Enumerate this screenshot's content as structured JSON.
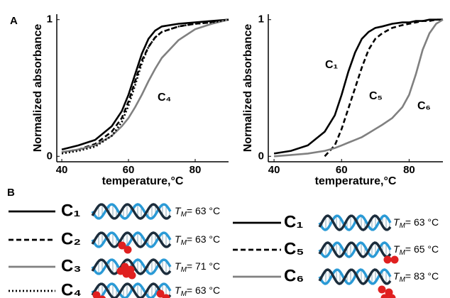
{
  "chart_data": [
    {
      "type": "line",
      "panel": "A",
      "xlabel": "temperature,°C",
      "ylabel": "Normalized absorbance",
      "x": [
        40,
        45,
        50,
        55,
        58,
        60,
        62,
        64,
        66,
        68,
        70,
        75,
        80,
        85,
        90
      ],
      "xlim": [
        38.5,
        90
      ],
      "xticks": [
        40,
        60,
        80
      ],
      "ylim": [
        -0.04,
        1.04
      ],
      "yticks": [
        0,
        1
      ],
      "series": [
        {
          "name": "C₁",
          "color": "#000000",
          "style": "solid",
          "values": [
            0.05,
            0.08,
            0.12,
            0.22,
            0.33,
            0.45,
            0.6,
            0.75,
            0.86,
            0.92,
            0.95,
            0.97,
            0.98,
            0.99,
            1.0
          ]
        },
        {
          "name": "C₂",
          "color": "#000000",
          "style": "dashed",
          "values": [
            0.03,
            0.05,
            0.09,
            0.18,
            0.28,
            0.4,
            0.55,
            0.7,
            0.8,
            0.87,
            0.91,
            0.95,
            0.97,
            0.98,
            1.0
          ]
        },
        {
          "name": "C₃",
          "color": "#808080",
          "style": "solid",
          "values": [
            0.03,
            0.05,
            0.08,
            0.15,
            0.22,
            0.28,
            0.36,
            0.45,
            0.55,
            0.64,
            0.72,
            0.85,
            0.93,
            0.97,
            1.0
          ]
        },
        {
          "name": "C₄",
          "color": "#000000",
          "style": "dotted",
          "values": [
            0.02,
            0.04,
            0.07,
            0.15,
            0.25,
            0.37,
            0.52,
            0.68,
            0.8,
            0.87,
            0.91,
            0.95,
            0.97,
            0.98,
            1.0
          ]
        }
      ],
      "annotations": [
        "C₄"
      ]
    },
    {
      "type": "line",
      "xlabel": "temperature,°C",
      "ylabel": "Normalized absorbance",
      "x": [
        40,
        45,
        50,
        55,
        58,
        60,
        62,
        64,
        66,
        68,
        70,
        72,
        75,
        78,
        80,
        82,
        84,
        86,
        88,
        90
      ],
      "xlim": [
        38.3,
        90
      ],
      "xticks": [
        40,
        60,
        80
      ],
      "ylim": [
        -0.04,
        1.04
      ],
      "yticks": [
        0,
        1
      ],
      "series": [
        {
          "name": "C₁",
          "color": "#000000",
          "style": "solid",
          "values": [
            0.02,
            0.04,
            0.08,
            0.18,
            0.3,
            0.45,
            0.62,
            0.76,
            0.86,
            0.91,
            0.94,
            0.95,
            0.97,
            0.98,
            0.98,
            0.99,
            0.99,
            1.0,
            1.0,
            1.0
          ]
        },
        {
          "name": "C₅",
          "color": "#000000",
          "style": "dashed",
          "values": [
            null,
            null,
            null,
            0.0,
            0.08,
            0.2,
            0.35,
            0.5,
            0.65,
            0.78,
            0.86,
            0.9,
            0.94,
            0.96,
            0.97,
            0.98,
            0.99,
            0.99,
            1.0,
            1.0
          ]
        },
        {
          "name": "C₆",
          "color": "#808080",
          "style": "solid",
          "values": [
            0.0,
            0.01,
            0.02,
            0.04,
            0.06,
            0.08,
            0.1,
            0.12,
            0.14,
            0.17,
            0.2,
            0.23,
            0.28,
            0.36,
            0.45,
            0.6,
            0.78,
            0.9,
            0.97,
            1.0
          ]
        }
      ],
      "annotations": [
        "C₁",
        "C₅",
        "C₆"
      ]
    }
  ],
  "panel_b": {
    "letter": "B",
    "tm_symbol": "T",
    "tm_subscript": "M",
    "left": [
      {
        "name": "C₁",
        "color": "#000000",
        "style": "solid",
        "tm": "= 63 °C"
      },
      {
        "name": "C₂",
        "color": "#000000",
        "style": "dashed",
        "tm": "= 63 °C"
      },
      {
        "name": "C₃",
        "color": "#808080",
        "style": "solid",
        "tm": "= 71 °C"
      },
      {
        "name": "C₄",
        "color": "#000000",
        "style": "dotted",
        "tm": "= 63 °C"
      }
    ],
    "right": [
      {
        "name": "C₁",
        "color": "#000000",
        "style": "solid",
        "tm": "= 63 °C"
      },
      {
        "name": "C₅",
        "color": "#000000",
        "style": "dashed",
        "tm": "= 65 °C"
      },
      {
        "name": "C₆",
        "color": "#808080",
        "style": "solid",
        "tm": "= 83 °C"
      }
    ]
  }
}
